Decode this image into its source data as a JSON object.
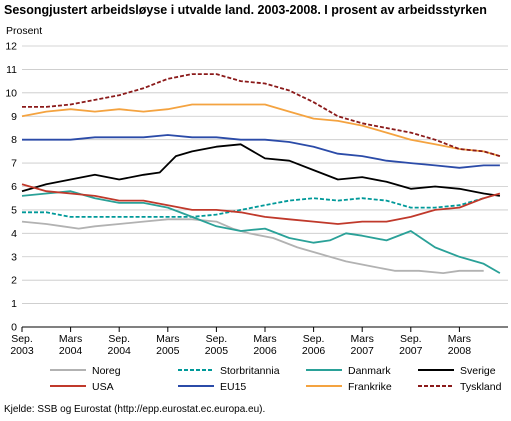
{
  "title": "Sesongjustert arbeidsløyse i utvalde land. 2003-2008. I prosent av arbeidsstyrken",
  "source": "Kjelde: SSB og Eurostat (http://epp.eurostat.ec.europa.eu).",
  "chart_data": {
    "type": "line",
    "ylabel": "Prosent",
    "ylim": [
      0,
      12
    ],
    "yticks": [
      "0",
      "1",
      "2",
      "3",
      "4",
      "5",
      "6",
      "7",
      "8",
      "9",
      "10",
      "11",
      "12"
    ],
    "xlim": [
      "2003-09",
      "2008-09"
    ],
    "xticks": [
      {
        "date": "2003-09",
        "line1": "Sep.",
        "line2": "2003"
      },
      {
        "date": "2004-03",
        "line1": "Mars",
        "line2": "2004"
      },
      {
        "date": "2004-09",
        "line1": "Sep.",
        "line2": "2004"
      },
      {
        "date": "2005-03",
        "line1": "Mars",
        "line2": "2005"
      },
      {
        "date": "2005-09",
        "line1": "Sep.",
        "line2": "2005"
      },
      {
        "date": "2006-03",
        "line1": "Mars",
        "line2": "2006"
      },
      {
        "date": "2006-09",
        "line1": "Sep.",
        "line2": "2006"
      },
      {
        "date": "2007-03",
        "line1": "Mars",
        "line2": "2007"
      },
      {
        "date": "2007-09",
        "line1": "Sep.",
        "line2": "2007"
      },
      {
        "date": "2008-03",
        "line1": "Mars",
        "line2": "2008"
      }
    ],
    "grid": true,
    "legend_position": "bottom",
    "series": [
      {
        "name": "Noreg",
        "color": "#b2b2b2",
        "dash": "solid",
        "points": [
          [
            "2003-09",
            4.5
          ],
          [
            "2003-12",
            4.4
          ],
          [
            "2004-02",
            4.3
          ],
          [
            "2004-04",
            4.2
          ],
          [
            "2004-06",
            4.3
          ],
          [
            "2004-09",
            4.4
          ],
          [
            "2004-12",
            4.5
          ],
          [
            "2005-03",
            4.6
          ],
          [
            "2005-06",
            4.6
          ],
          [
            "2005-09",
            4.5
          ],
          [
            "2005-11",
            4.2
          ],
          [
            "2006-01",
            4.0
          ],
          [
            "2006-04",
            3.8
          ],
          [
            "2006-07",
            3.4
          ],
          [
            "2006-10",
            3.1
          ],
          [
            "2007-01",
            2.8
          ],
          [
            "2007-04",
            2.6
          ],
          [
            "2007-07",
            2.4
          ],
          [
            "2007-10",
            2.4
          ],
          [
            "2008-01",
            2.3
          ],
          [
            "2008-03",
            2.4
          ],
          [
            "2008-06",
            2.4
          ]
        ]
      },
      {
        "name": "Storbritannia",
        "color": "#009999",
        "dash": "dashed",
        "points": [
          [
            "2003-09",
            4.9
          ],
          [
            "2003-12",
            4.9
          ],
          [
            "2004-03",
            4.7
          ],
          [
            "2004-06",
            4.7
          ],
          [
            "2004-09",
            4.7
          ],
          [
            "2004-12",
            4.7
          ],
          [
            "2005-03",
            4.7
          ],
          [
            "2005-06",
            4.7
          ],
          [
            "2005-09",
            4.8
          ],
          [
            "2005-12",
            5.0
          ],
          [
            "2006-03",
            5.2
          ],
          [
            "2006-06",
            5.4
          ],
          [
            "2006-09",
            5.5
          ],
          [
            "2006-12",
            5.4
          ],
          [
            "2007-03",
            5.5
          ],
          [
            "2007-06",
            5.4
          ],
          [
            "2007-09",
            5.1
          ],
          [
            "2007-12",
            5.1
          ],
          [
            "2008-03",
            5.2
          ],
          [
            "2008-06",
            5.5
          ]
        ]
      },
      {
        "name": "Danmark",
        "color": "#2aa198",
        "dash": "solid",
        "points": [
          [
            "2003-09",
            5.6
          ],
          [
            "2003-12",
            5.7
          ],
          [
            "2004-03",
            5.8
          ],
          [
            "2004-06",
            5.5
          ],
          [
            "2004-09",
            5.3
          ],
          [
            "2004-12",
            5.3
          ],
          [
            "2005-03",
            5.1
          ],
          [
            "2005-06",
            4.7
          ],
          [
            "2005-09",
            4.3
          ],
          [
            "2005-12",
            4.1
          ],
          [
            "2006-03",
            4.2
          ],
          [
            "2006-06",
            3.8
          ],
          [
            "2006-09",
            3.6
          ],
          [
            "2006-11",
            3.7
          ],
          [
            "2007-01",
            4.0
          ],
          [
            "2007-03",
            3.9
          ],
          [
            "2007-06",
            3.7
          ],
          [
            "2007-09",
            4.1
          ],
          [
            "2007-12",
            3.4
          ],
          [
            "2008-03",
            3.0
          ],
          [
            "2008-06",
            2.7
          ],
          [
            "2008-08",
            2.3
          ]
        ]
      },
      {
        "name": "Sverige",
        "color": "#000000",
        "dash": "solid",
        "points": [
          [
            "2003-09",
            5.8
          ],
          [
            "2003-12",
            6.1
          ],
          [
            "2004-03",
            6.3
          ],
          [
            "2004-06",
            6.5
          ],
          [
            "2004-09",
            6.3
          ],
          [
            "2004-12",
            6.5
          ],
          [
            "2005-02",
            6.6
          ],
          [
            "2005-04",
            7.3
          ],
          [
            "2005-06",
            7.5
          ],
          [
            "2005-09",
            7.7
          ],
          [
            "2005-12",
            7.8
          ],
          [
            "2006-03",
            7.2
          ],
          [
            "2006-06",
            7.1
          ],
          [
            "2006-09",
            6.7
          ],
          [
            "2006-12",
            6.3
          ],
          [
            "2007-03",
            6.4
          ],
          [
            "2007-06",
            6.2
          ],
          [
            "2007-09",
            5.9
          ],
          [
            "2007-12",
            6.0
          ],
          [
            "2008-03",
            5.9
          ],
          [
            "2008-06",
            5.7
          ],
          [
            "2008-08",
            5.6
          ]
        ]
      },
      {
        "name": "USA",
        "color": "#c0392b",
        "dash": "solid",
        "points": [
          [
            "2003-09",
            6.1
          ],
          [
            "2003-12",
            5.8
          ],
          [
            "2004-03",
            5.7
          ],
          [
            "2004-06",
            5.6
          ],
          [
            "2004-09",
            5.4
          ],
          [
            "2004-12",
            5.4
          ],
          [
            "2005-03",
            5.2
          ],
          [
            "2005-06",
            5.0
          ],
          [
            "2005-09",
            5.0
          ],
          [
            "2005-12",
            4.9
          ],
          [
            "2006-03",
            4.7
          ],
          [
            "2006-06",
            4.6
          ],
          [
            "2006-09",
            4.5
          ],
          [
            "2006-12",
            4.4
          ],
          [
            "2007-03",
            4.5
          ],
          [
            "2007-06",
            4.5
          ],
          [
            "2007-09",
            4.7
          ],
          [
            "2007-12",
            5.0
          ],
          [
            "2008-03",
            5.1
          ],
          [
            "2008-06",
            5.5
          ],
          [
            "2008-08",
            5.7
          ]
        ]
      },
      {
        "name": "EU15",
        "color": "#2b4ba8",
        "dash": "solid",
        "points": [
          [
            "2003-09",
            8.0
          ],
          [
            "2003-12",
            8.0
          ],
          [
            "2004-03",
            8.0
          ],
          [
            "2004-06",
            8.1
          ],
          [
            "2004-09",
            8.1
          ],
          [
            "2004-12",
            8.1
          ],
          [
            "2005-03",
            8.2
          ],
          [
            "2005-06",
            8.1
          ],
          [
            "2005-09",
            8.1
          ],
          [
            "2005-12",
            8.0
          ],
          [
            "2006-03",
            8.0
          ],
          [
            "2006-06",
            7.9
          ],
          [
            "2006-09",
            7.7
          ],
          [
            "2006-12",
            7.4
          ],
          [
            "2007-03",
            7.3
          ],
          [
            "2007-06",
            7.1
          ],
          [
            "2007-09",
            7.0
          ],
          [
            "2007-12",
            6.9
          ],
          [
            "2008-03",
            6.8
          ],
          [
            "2008-06",
            6.9
          ],
          [
            "2008-08",
            6.9
          ]
        ]
      },
      {
        "name": "Frankrike",
        "color": "#f4a340",
        "dash": "solid",
        "points": [
          [
            "2003-09",
            9.0
          ],
          [
            "2003-12",
            9.2
          ],
          [
            "2004-03",
            9.3
          ],
          [
            "2004-06",
            9.2
          ],
          [
            "2004-09",
            9.3
          ],
          [
            "2004-12",
            9.2
          ],
          [
            "2005-03",
            9.3
          ],
          [
            "2005-06",
            9.5
          ],
          [
            "2005-09",
            9.5
          ],
          [
            "2005-12",
            9.5
          ],
          [
            "2006-03",
            9.5
          ],
          [
            "2006-06",
            9.2
          ],
          [
            "2006-09",
            8.9
          ],
          [
            "2006-12",
            8.8
          ],
          [
            "2007-03",
            8.6
          ],
          [
            "2007-06",
            8.3
          ],
          [
            "2007-09",
            8.0
          ],
          [
            "2007-12",
            7.8
          ],
          [
            "2008-03",
            7.6
          ],
          [
            "2008-06",
            7.5
          ],
          [
            "2008-08",
            7.3
          ]
        ]
      },
      {
        "name": "Tyskland",
        "color": "#8b1a1a",
        "dash": "dashed",
        "points": [
          [
            "2003-09",
            9.4
          ],
          [
            "2003-12",
            9.4
          ],
          [
            "2004-03",
            9.5
          ],
          [
            "2004-06",
            9.7
          ],
          [
            "2004-09",
            9.9
          ],
          [
            "2004-12",
            10.2
          ],
          [
            "2005-03",
            10.6
          ],
          [
            "2005-06",
            10.8
          ],
          [
            "2005-09",
            10.8
          ],
          [
            "2005-12",
            10.5
          ],
          [
            "2006-03",
            10.4
          ],
          [
            "2006-06",
            10.1
          ],
          [
            "2006-09",
            9.6
          ],
          [
            "2006-12",
            9.0
          ],
          [
            "2007-03",
            8.7
          ],
          [
            "2007-06",
            8.5
          ],
          [
            "2007-09",
            8.3
          ],
          [
            "2007-12",
            8.0
          ],
          [
            "2008-03",
            7.6
          ],
          [
            "2008-06",
            7.5
          ],
          [
            "2008-08",
            7.3
          ]
        ]
      }
    ]
  }
}
